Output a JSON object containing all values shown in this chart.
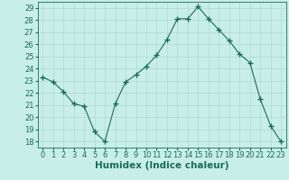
{
  "x": [
    0,
    1,
    2,
    3,
    4,
    5,
    6,
    7,
    8,
    9,
    10,
    11,
    12,
    13,
    14,
    15,
    16,
    17,
    18,
    19,
    20,
    21,
    22,
    23
  ],
  "y": [
    23.3,
    22.9,
    22.1,
    21.1,
    20.9,
    18.8,
    18.0,
    21.1,
    22.9,
    23.5,
    24.2,
    25.1,
    26.4,
    28.1,
    28.1,
    29.1,
    28.1,
    27.2,
    26.3,
    25.2,
    24.5,
    21.5,
    19.3,
    18.0
  ],
  "xlabel": "Humidex (Indice chaleur)",
  "xlim": [
    -0.5,
    23.5
  ],
  "ylim": [
    17.5,
    29.5
  ],
  "yticks": [
    18,
    19,
    20,
    21,
    22,
    23,
    24,
    25,
    26,
    27,
    28,
    29
  ],
  "xticks": [
    0,
    1,
    2,
    3,
    4,
    5,
    6,
    7,
    8,
    9,
    10,
    11,
    12,
    13,
    14,
    15,
    16,
    17,
    18,
    19,
    20,
    21,
    22,
    23
  ],
  "line_color": "#1a6b5a",
  "bg_color": "#c8eee8",
  "grid_color": "#b0d8d0",
  "tick_fontsize": 6.0,
  "xlabel_fontsize": 7.5
}
